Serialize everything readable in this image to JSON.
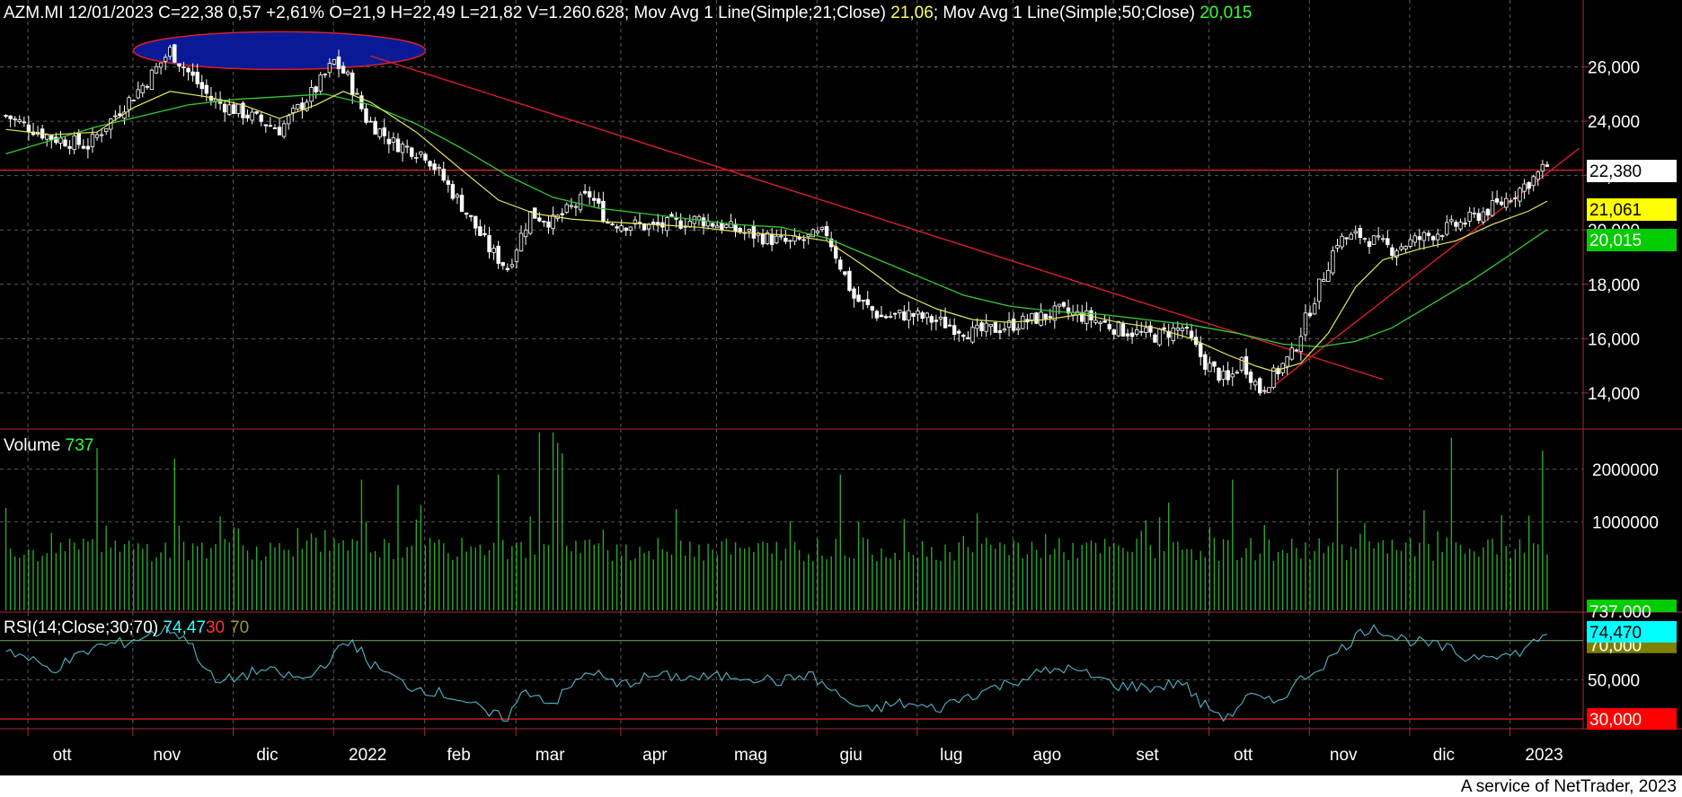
{
  "colors": {
    "background": "#000000",
    "grid": "#5a5a5a",
    "ma21": "#e6e65a",
    "ma50": "#33cc33",
    "volume": "#2aa82a",
    "rsi": "#4fb6c8",
    "trendline": "#d81f2a",
    "highlight": "#0a1a96",
    "price_tag": "#ffffff",
    "ma21_tag": "#ffff00",
    "ma50_tag": "#00cc00",
    "rsi_tag": "#00ffff",
    "rsi30_tag": "#ff0000",
    "rsi70_tag": "#808000"
  },
  "header": {
    "main": "AZM.MI 12/01/2023 C=22,38 0,57 +2,61% O=21,9 H=22,49 L=21,82 V=1.260.628",
    "ma21_text": "; Mov Avg 1 Line(Simple;21;Close) ",
    "ma21_value": "21,06",
    "ma50_text": "; Mov Avg 1 Line(Simple;50;Close) ",
    "ma50_value": "20,015"
  },
  "volume_header": {
    "label": "Volume ",
    "value": "737"
  },
  "rsi_header": {
    "label": "RSI(14;Close;30;70) ",
    "value": "74,47",
    "low": "30",
    "high": "70"
  },
  "footer": {
    "credit": "A service of NetTrader, 2023"
  },
  "chart_data": {
    "type": "candlestick",
    "symbol": "AZM.MI",
    "x_range": [
      "2021-09-20",
      "2023-01-12"
    ],
    "month_labels": [
      "ott",
      "nov",
      "dic",
      "2022",
      "feb",
      "mar",
      "apr",
      "mag",
      "giu",
      "lug",
      "ago",
      "set",
      "ott",
      "nov",
      "dic",
      "2023"
    ],
    "price_axis": {
      "ticks": [
        "26,000",
        "24,000",
        "22,000",
        "20,000",
        "18,000",
        "16,000",
        "14,000"
      ],
      "values": [
        26,
        24,
        22,
        20,
        18,
        16,
        14
      ],
      "ylim": [
        13.6,
        27.8
      ]
    },
    "price_tags": {
      "close": "22,380",
      "ma21": "21,061",
      "ma50": "20,015"
    },
    "price_path": [
      [
        0,
        24.2
      ],
      [
        10,
        23.4
      ],
      [
        18,
        23.1
      ],
      [
        26,
        24.6
      ],
      [
        31,
        25.5
      ],
      [
        36,
        26.6
      ],
      [
        40,
        25.8
      ],
      [
        45,
        24.8
      ],
      [
        52,
        24.3
      ],
      [
        60,
        23.7
      ],
      [
        68,
        25.2
      ],
      [
        72,
        26.2
      ],
      [
        75,
        25.6
      ],
      [
        79,
        24.1
      ],
      [
        85,
        23.2
      ],
      [
        92,
        22.8
      ],
      [
        100,
        20.9
      ],
      [
        106,
        19.3
      ],
      [
        110,
        18.6
      ],
      [
        115,
        20.6
      ],
      [
        120,
        20.3
      ],
      [
        128,
        21.3
      ],
      [
        132,
        20.3
      ],
      [
        142,
        20.1
      ],
      [
        152,
        20.4
      ],
      [
        162,
        19.9
      ],
      [
        172,
        19.5
      ],
      [
        180,
        19.9
      ],
      [
        186,
        17.5
      ],
      [
        192,
        16.8
      ],
      [
        198,
        16.9
      ],
      [
        205,
        16.6
      ],
      [
        212,
        16.2
      ],
      [
        218,
        16.4
      ],
      [
        225,
        16.7
      ],
      [
        231,
        17.0
      ],
      [
        237,
        16.8
      ],
      [
        245,
        16.3
      ],
      [
        252,
        16.1
      ],
      [
        258,
        16.4
      ],
      [
        263,
        15.1
      ],
      [
        268,
        14.4
      ],
      [
        271,
        15.2
      ],
      [
        275,
        14.1
      ],
      [
        282,
        15.4
      ],
      [
        286,
        17.1
      ],
      [
        292,
        19.6
      ],
      [
        297,
        19.8
      ],
      [
        304,
        19.3
      ],
      [
        312,
        19.8
      ],
      [
        320,
        20.3
      ],
      [
        328,
        21.0
      ],
      [
        335,
        21.9
      ],
      [
        338,
        22.38
      ]
    ],
    "ma21": [
      [
        0,
        23.7
      ],
      [
        10,
        23.5
      ],
      [
        20,
        23.6
      ],
      [
        28,
        24.5
      ],
      [
        36,
        25.1
      ],
      [
        44,
        24.9
      ],
      [
        52,
        24.6
      ],
      [
        60,
        24.1
      ],
      [
        68,
        24.6
      ],
      [
        74,
        25.1
      ],
      [
        80,
        24.7
      ],
      [
        90,
        23.6
      ],
      [
        100,
        22.2
      ],
      [
        108,
        21.1
      ],
      [
        116,
        20.6
      ],
      [
        124,
        20.4
      ],
      [
        132,
        20.3
      ],
      [
        142,
        20.2
      ],
      [
        152,
        20.1
      ],
      [
        162,
        19.9
      ],
      [
        172,
        19.8
      ],
      [
        180,
        19.6
      ],
      [
        188,
        18.7
      ],
      [
        196,
        17.7
      ],
      [
        204,
        17.1
      ],
      [
        212,
        16.7
      ],
      [
        220,
        16.6
      ],
      [
        228,
        16.7
      ],
      [
        236,
        16.9
      ],
      [
        244,
        16.6
      ],
      [
        252,
        16.4
      ],
      [
        260,
        16.0
      ],
      [
        268,
        15.4
      ],
      [
        274,
        15.0
      ],
      [
        278,
        14.8
      ],
      [
        284,
        15.1
      ],
      [
        290,
        16.2
      ],
      [
        296,
        17.9
      ],
      [
        302,
        18.9
      ],
      [
        310,
        19.3
      ],
      [
        318,
        19.6
      ],
      [
        326,
        20.2
      ],
      [
        334,
        20.7
      ],
      [
        338,
        21.06
      ]
    ],
    "ma50": [
      [
        0,
        22.8
      ],
      [
        10,
        23.3
      ],
      [
        20,
        23.8
      ],
      [
        30,
        24.2
      ],
      [
        40,
        24.6
      ],
      [
        50,
        24.8
      ],
      [
        60,
        24.9
      ],
      [
        70,
        25.0
      ],
      [
        80,
        24.6
      ],
      [
        90,
        23.9
      ],
      [
        100,
        23.0
      ],
      [
        110,
        22.0
      ],
      [
        120,
        21.2
      ],
      [
        130,
        20.8
      ],
      [
        140,
        20.6
      ],
      [
        150,
        20.4
      ],
      [
        160,
        20.2
      ],
      [
        170,
        20.1
      ],
      [
        180,
        19.7
      ],
      [
        190,
        19.0
      ],
      [
        200,
        18.3
      ],
      [
        210,
        17.6
      ],
      [
        220,
        17.2
      ],
      [
        230,
        17.0
      ],
      [
        240,
        16.9
      ],
      [
        250,
        16.7
      ],
      [
        260,
        16.5
      ],
      [
        270,
        16.2
      ],
      [
        280,
        15.8
      ],
      [
        288,
        15.7
      ],
      [
        296,
        15.9
      ],
      [
        304,
        16.4
      ],
      [
        314,
        17.4
      ],
      [
        322,
        18.2
      ],
      [
        330,
        19.1
      ],
      [
        338,
        20.015
      ]
    ],
    "highlight": {
      "from": [
        28,
        26.4
      ],
      "to": [
        92,
        26.4
      ],
      "note": "blue ellipse around November 2021 and January 2022 highs"
    },
    "downtrend_line": {
      "from": [
        80,
        26.4
      ],
      "to": [
        302,
        14.5
      ]
    },
    "uptrend_line": {
      "from": [
        276,
        14.0
      ],
      "to": [
        345,
        23.0
      ]
    },
    "support_level": 22.2,
    "volume": {
      "axis_ticks": [
        "2000000",
        "1000000"
      ],
      "axis_values": [
        2000000,
        1000000
      ],
      "ylim": [
        0,
        2900000
      ],
      "last_value_tag": "737.000",
      "spikes": {
        "20": 2400000,
        "37": 2200000,
        "78": 1800000,
        "86": 1700000,
        "108": 1900000,
        "117": 2700000,
        "120": 2700000,
        "121": 2500000,
        "122": 2300000,
        "183": 1900000,
        "269": 1800000,
        "292": 2000000,
        "317": 2600000,
        "337": 2350000
      },
      "baseline_range": [
        250000,
        700000
      ]
    },
    "rsi": {
      "axis_ticks": [
        "50,000"
      ],
      "axis_values": [
        50
      ],
      "ylim": [
        25,
        90
      ],
      "levels": [
        30,
        70
      ],
      "tags": {
        "value": "74,470",
        "high": "70,000",
        "low": "30,000"
      },
      "path": [
        [
          0,
          66
        ],
        [
          10,
          55
        ],
        [
          20,
          67
        ],
        [
          26,
          69
        ],
        [
          36,
          76
        ],
        [
          40,
          70
        ],
        [
          46,
          48
        ],
        [
          56,
          55
        ],
        [
          66,
          50
        ],
        [
          72,
          63
        ],
        [
          76,
          70
        ],
        [
          80,
          58
        ],
        [
          88,
          47
        ],
        [
          94,
          44
        ],
        [
          100,
          40
        ],
        [
          106,
          32
        ],
        [
          110,
          31
        ],
        [
          114,
          45
        ],
        [
          120,
          38
        ],
        [
          128,
          55
        ],
        [
          134,
          47
        ],
        [
          142,
          52
        ],
        [
          152,
          51
        ],
        [
          162,
          52
        ],
        [
          170,
          49
        ],
        [
          176,
          53
        ],
        [
          182,
          43
        ],
        [
          188,
          34
        ],
        [
          196,
          38
        ],
        [
          204,
          35
        ],
        [
          210,
          41
        ],
        [
          218,
          47
        ],
        [
          226,
          53
        ],
        [
          232,
          56
        ],
        [
          238,
          52
        ],
        [
          244,
          47
        ],
        [
          252,
          46
        ],
        [
          258,
          49
        ],
        [
          262,
          38
        ],
        [
          266,
          33
        ],
        [
          268,
          30
        ],
        [
          272,
          42
        ],
        [
          278,
          38
        ],
        [
          284,
          50
        ],
        [
          290,
          60
        ],
        [
          296,
          72
        ],
        [
          300,
          78
        ],
        [
          304,
          72
        ],
        [
          310,
          69
        ],
        [
          316,
          66
        ],
        [
          320,
          61
        ],
        [
          326,
          64
        ],
        [
          330,
          62
        ],
        [
          334,
          67
        ],
        [
          338,
          74.47
        ]
      ]
    }
  }
}
